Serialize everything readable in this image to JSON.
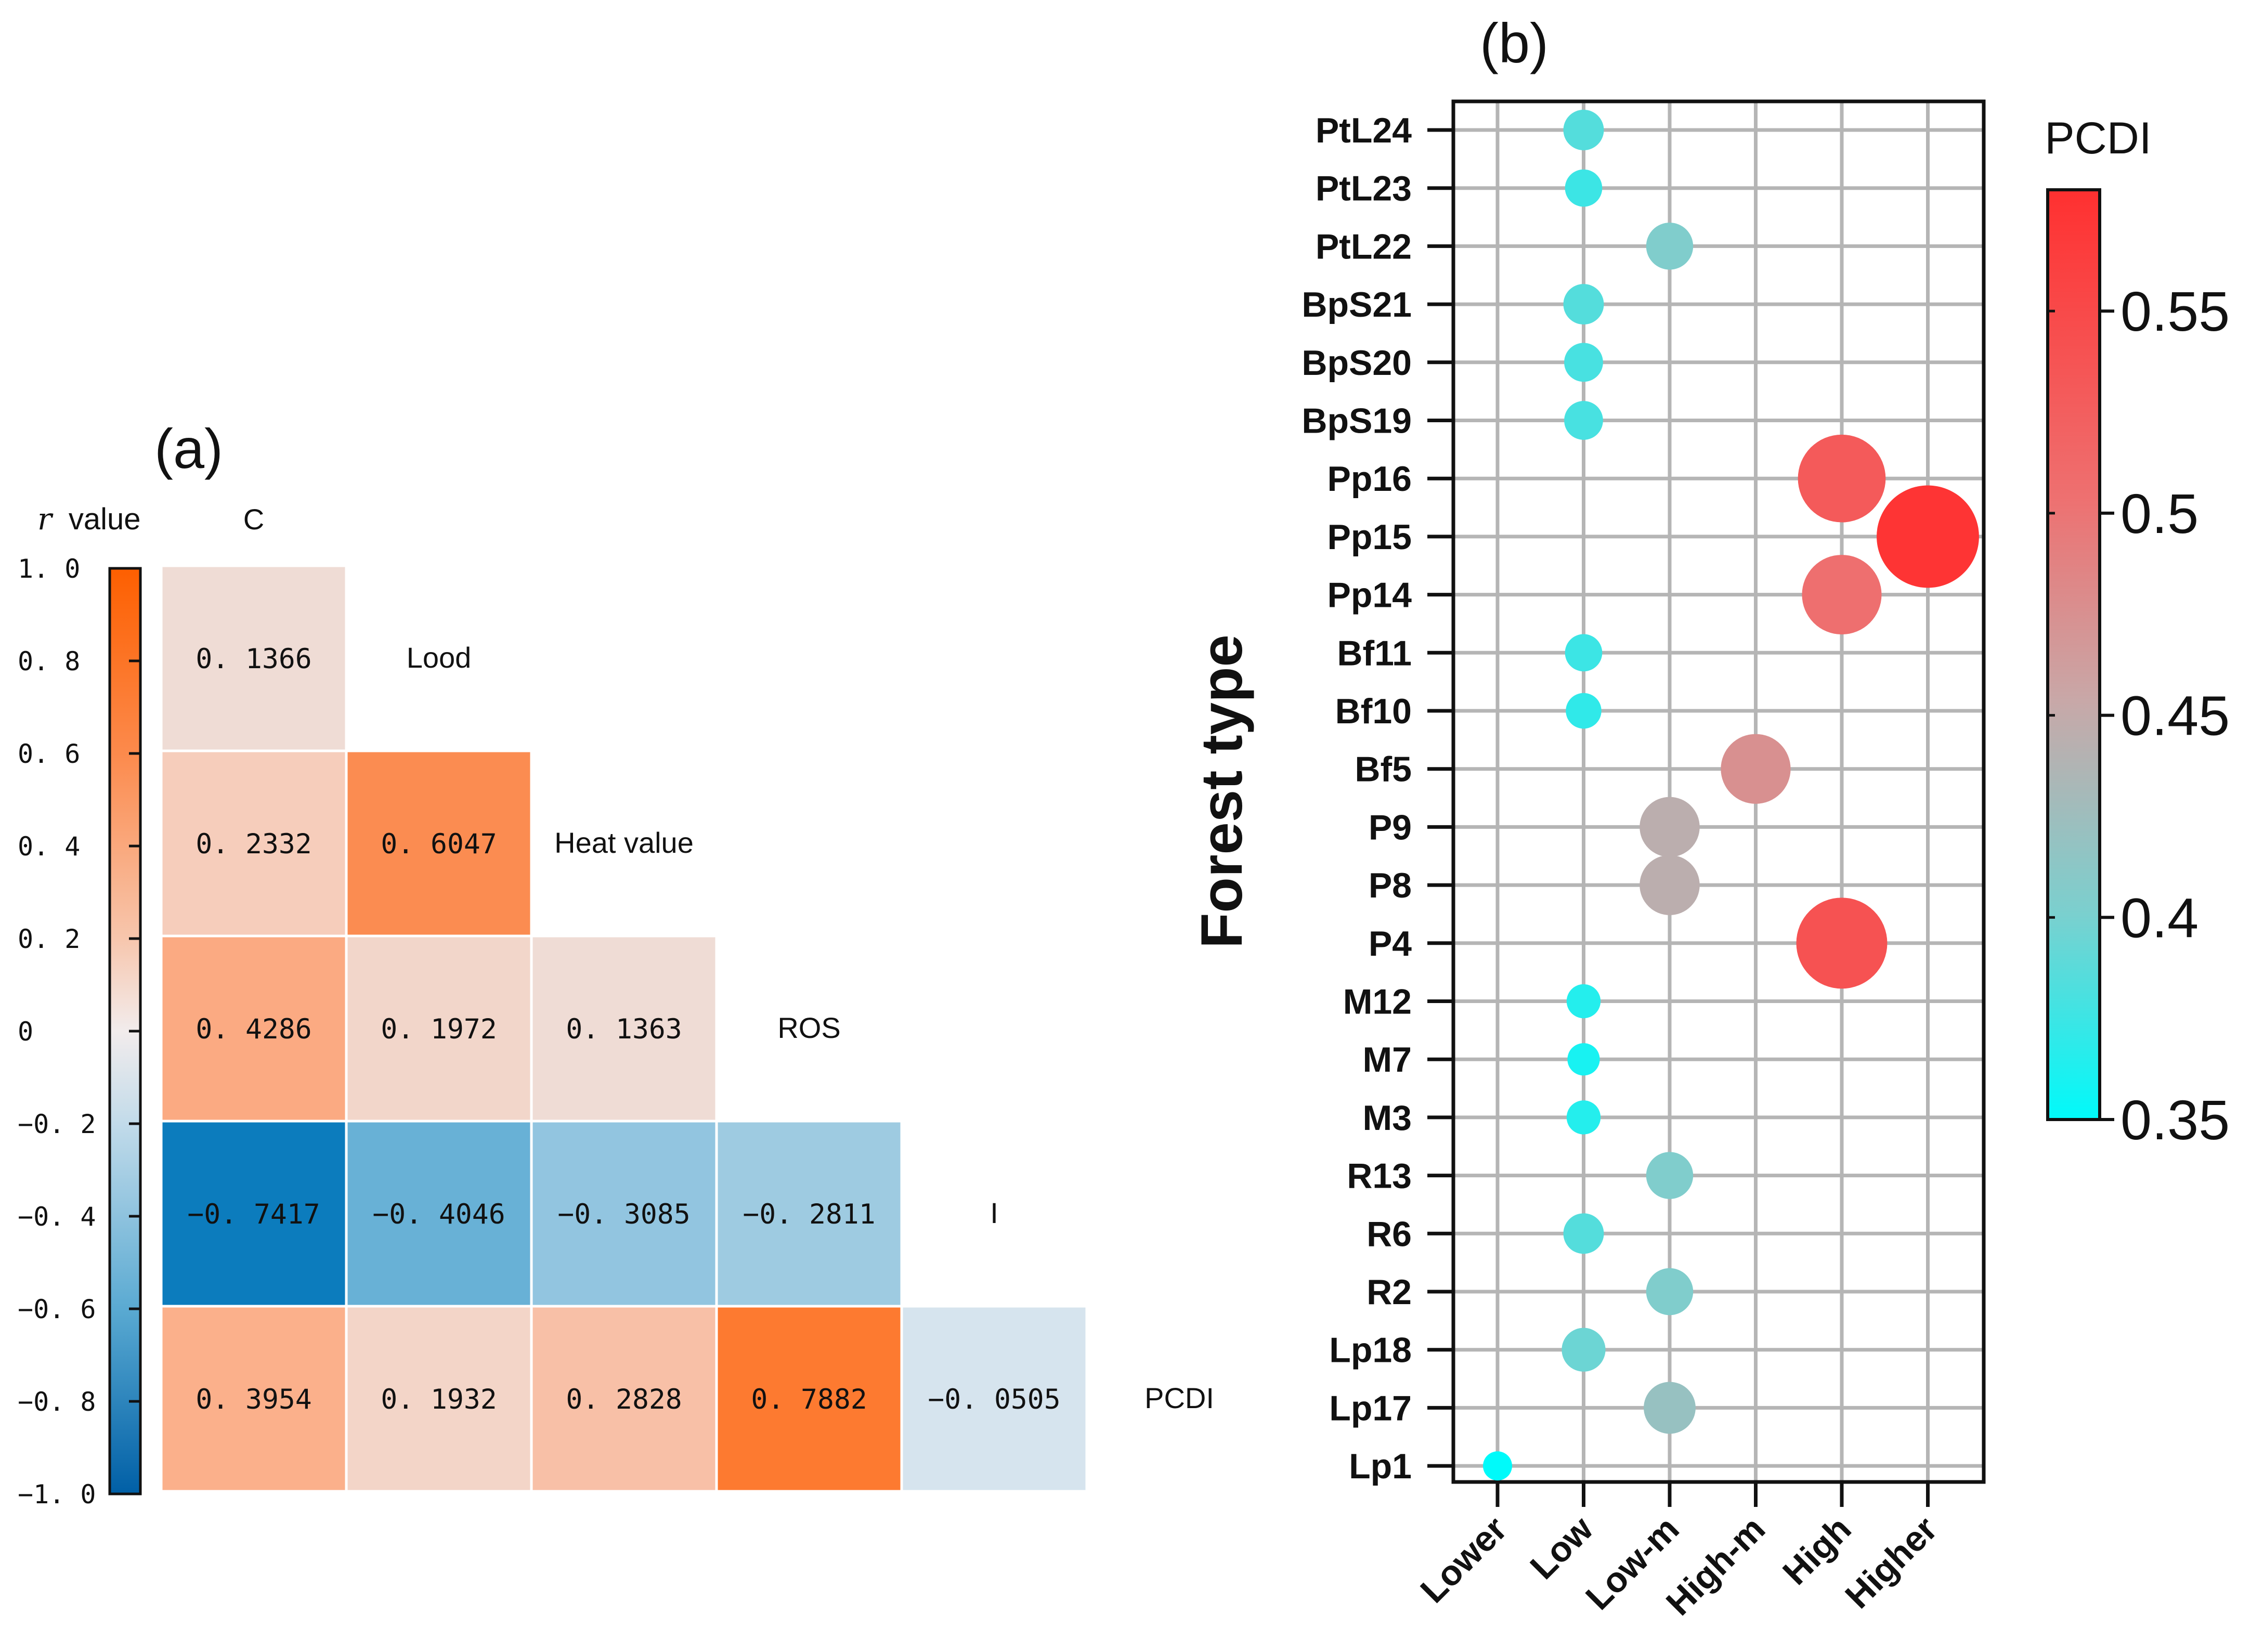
{
  "chart_data": [
    {
      "panel": "(a)",
      "type": "heatmap",
      "title": "(a)",
      "colorbar_label_prefix": "r",
      "colorbar_label_suffix": "value",
      "colorbar_ticks": [
        "1. 0",
        "0. 8",
        "0. 6",
        "0. 4",
        "0. 2",
        "0",
        "−0. 2",
        "−0. 4",
        "−0. 6",
        "−0. 8",
        "−1. 0"
      ],
      "colorbar_range": [
        -1,
        1
      ],
      "variables": [
        "C",
        "Lood",
        "Heat value",
        "ROS",
        "I",
        "PCDI"
      ],
      "cells": [
        {
          "row": 1,
          "col": 0,
          "value": 0.1366,
          "label": "0. 1366",
          "color": "#efdcd5"
        },
        {
          "row": 2,
          "col": 0,
          "value": 0.2332,
          "label": "0. 2332",
          "color": "#f6cdbb"
        },
        {
          "row": 2,
          "col": 1,
          "value": 0.6047,
          "label": "0. 6047",
          "color": "#fb8c51"
        },
        {
          "row": 3,
          "col": 0,
          "value": 0.4286,
          "label": "0. 4286",
          "color": "#fbaa82"
        },
        {
          "row": 3,
          "col": 1,
          "value": 0.1972,
          "label": "0. 1972",
          "color": "#f2d6ca"
        },
        {
          "row": 3,
          "col": 2,
          "value": 0.1363,
          "label": "0. 1363",
          "color": "#efdcd5"
        },
        {
          "row": 4,
          "col": 0,
          "value": -0.7417,
          "label": "−0. 7417",
          "color": "#0c7cbd"
        },
        {
          "row": 4,
          "col": 1,
          "value": -0.4046,
          "label": "−0. 4046",
          "color": "#68b1d6"
        },
        {
          "row": 4,
          "col": 2,
          "value": -0.3085,
          "label": "−0. 3085",
          "color": "#92c5e0"
        },
        {
          "row": 4,
          "col": 3,
          "value": -0.2811,
          "label": "−0. 2811",
          "color": "#9ecbe1"
        },
        {
          "row": 5,
          "col": 0,
          "value": 0.3954,
          "label": "0. 3954",
          "color": "#fbb08b"
        },
        {
          "row": 5,
          "col": 1,
          "value": 0.1932,
          "label": "0. 1932",
          "color": "#f3d5c8"
        },
        {
          "row": 5,
          "col": 2,
          "value": 0.2828,
          "label": "0. 2828",
          "color": "#f8c0a7"
        },
        {
          "row": 5,
          "col": 3,
          "value": 0.7882,
          "label": "0. 7882",
          "color": "#fd7a30"
        },
        {
          "row": 5,
          "col": 4,
          "value": -0.0505,
          "label": "−0. 0505",
          "color": "#d6e4ee"
        }
      ]
    },
    {
      "panel": "(b)",
      "type": "scatter",
      "title": "(b)",
      "ylabel": "Forest type",
      "colorbar_label": "PCDI",
      "colorbar_range": [
        0.35,
        0.58
      ],
      "colorbar_ticks": [
        0.55,
        0.5,
        0.45,
        0.4,
        0.35
      ],
      "colorbar_tick_labels": [
        "0.55",
        "0.5",
        "0.45",
        "0.4",
        "0.35"
      ],
      "x_categories": [
        "Lower",
        "Low",
        "Low-m",
        "High-m",
        "High",
        "Higher"
      ],
      "y_categories": [
        "PtL24",
        "PtL23",
        "PtL22",
        "BpS21",
        "BpS20",
        "BpS19",
        "Pp16",
        "Pp15",
        "Pp14",
        "Bf11",
        "Bf10",
        "Bf5",
        "P9",
        "P8",
        "P4",
        "M12",
        "M7",
        "M3",
        "R13",
        "R6",
        "R2",
        "Lp18",
        "Lp17",
        "Lp1"
      ],
      "points": [
        {
          "y": "PtL24",
          "x": "Low",
          "pcdi": 0.385
        },
        {
          "y": "PtL23",
          "x": "Low",
          "pcdi": 0.375
        },
        {
          "y": "PtL22",
          "x": "Low-m",
          "pcdi": 0.405
        },
        {
          "y": "BpS21",
          "x": "Low",
          "pcdi": 0.385
        },
        {
          "y": "BpS20",
          "x": "Low",
          "pcdi": 0.38
        },
        {
          "y": "BpS19",
          "x": "Low",
          "pcdi": 0.38
        },
        {
          "y": "Pp16",
          "x": "High",
          "pcdi": 0.53
        },
        {
          "y": "Pp15",
          "x": "Higher",
          "pcdi": 0.575
        },
        {
          "y": "Pp14",
          "x": "High",
          "pcdi": 0.505
        },
        {
          "y": "Bf11",
          "x": "Low",
          "pcdi": 0.375
        },
        {
          "y": "Bf10",
          "x": "Low",
          "pcdi": 0.37
        },
        {
          "y": "Bf5",
          "x": "High-m",
          "pcdi": 0.475
        },
        {
          "y": "P9",
          "x": "Low-m",
          "pcdi": 0.445
        },
        {
          "y": "P8",
          "x": "Low-m",
          "pcdi": 0.445
        },
        {
          "y": "P4",
          "x": "High",
          "pcdi": 0.54
        },
        {
          "y": "M12",
          "x": "Low",
          "pcdi": 0.365
        },
        {
          "y": "M7",
          "x": "Low",
          "pcdi": 0.36
        },
        {
          "y": "M3",
          "x": "Low",
          "pcdi": 0.365
        },
        {
          "y": "R13",
          "x": "Low-m",
          "pcdi": 0.405
        },
        {
          "y": "R6",
          "x": "Low",
          "pcdi": 0.385
        },
        {
          "y": "R2",
          "x": "Low-m",
          "pcdi": 0.405
        },
        {
          "y": "Lp18",
          "x": "Low",
          "pcdi": 0.395
        },
        {
          "y": "Lp17",
          "x": "Low-m",
          "pcdi": 0.42
        },
        {
          "y": "Lp1",
          "x": "Lower",
          "pcdi": 0.35
        }
      ]
    }
  ]
}
